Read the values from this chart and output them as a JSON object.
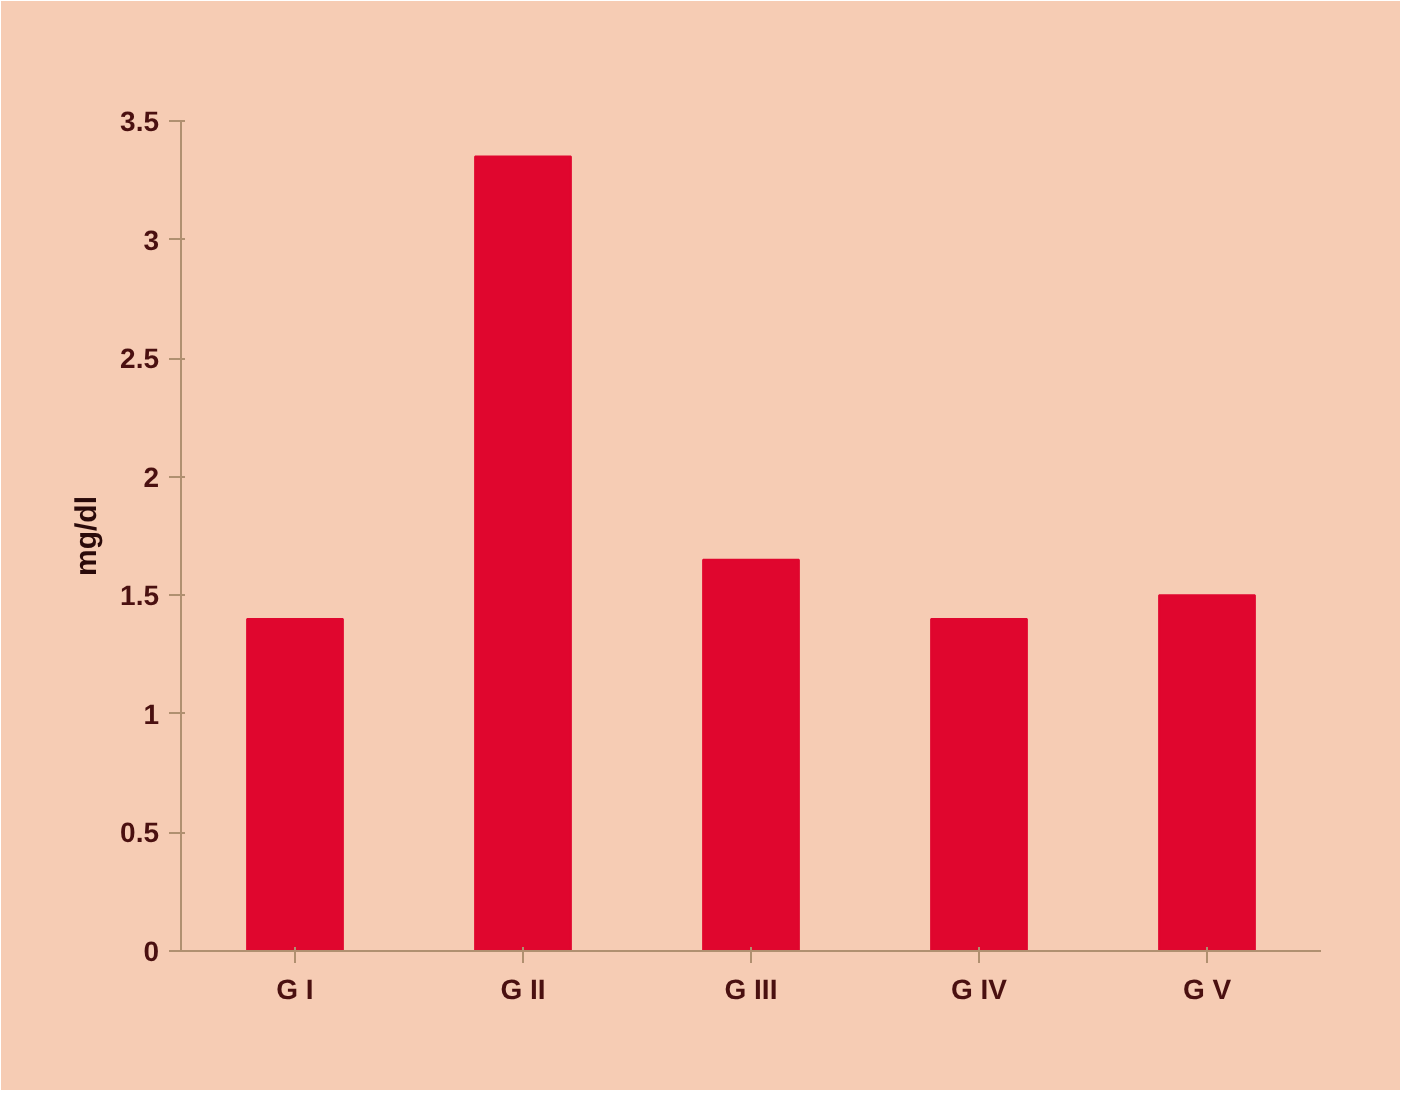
{
  "chart_data": {
    "type": "bar",
    "ylabel": "mg/dl",
    "categories": [
      "G I",
      "G II",
      "G III",
      "G IV",
      "G V"
    ],
    "values": [
      1.4,
      3.35,
      1.65,
      1.4,
      1.5
    ],
    "color": "#e0062e",
    "ylim": [
      0,
      3.5
    ],
    "yticks": [
      0,
      0.5,
      1,
      1.5,
      2,
      2.5,
      3,
      3.5
    ],
    "grid": false
  }
}
